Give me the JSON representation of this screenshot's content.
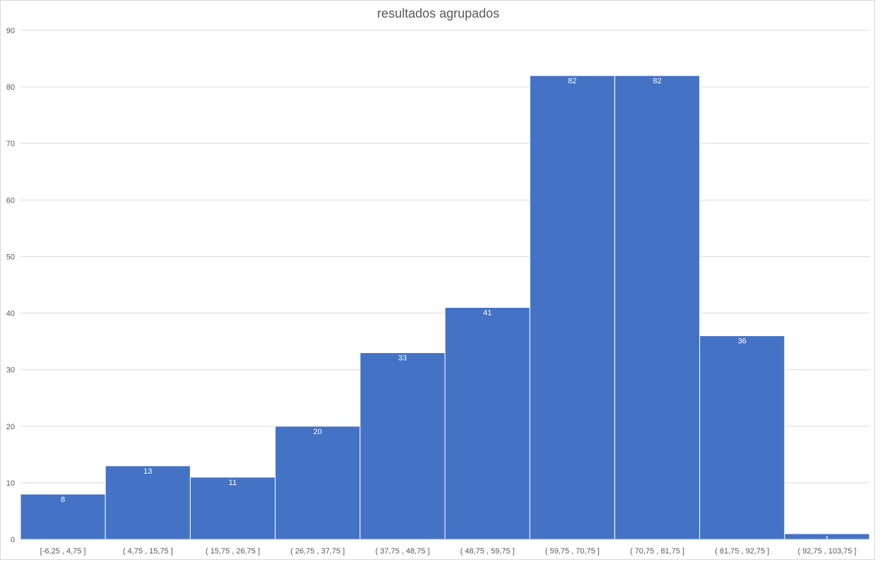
{
  "chart_data": {
    "type": "bar",
    "title": "resultados agrupados",
    "xlabel": "",
    "ylabel": "",
    "categories": [
      "[-6,25 ,  4,75 ]",
      "( 4,75 ,  15,75 ]",
      "( 15,75 ,  26,75 ]",
      "( 26,75 ,  37,75 ]",
      "( 37,75 ,  48,75 ]",
      "( 48,75 ,  59,75 ]",
      "( 59,75 ,  70,75 ]",
      "( 70,75 ,  81,75 ]",
      "( 81,75 ,  92,75 ]",
      "( 92,75 ,  103,75 ]"
    ],
    "values": [
      8,
      13,
      11,
      20,
      33,
      41,
      82,
      82,
      36,
      1
    ],
    "ylim": [
      0,
      90
    ],
    "yticks": [
      0,
      10,
      20,
      30,
      40,
      50,
      60,
      70,
      80,
      90
    ],
    "grid": true,
    "legend": "none",
    "data_labels": true,
    "colors": {
      "bar": "#4472c4",
      "grid": "#d9d9d9",
      "text": "#595959",
      "data_label": "#ffffff"
    }
  }
}
